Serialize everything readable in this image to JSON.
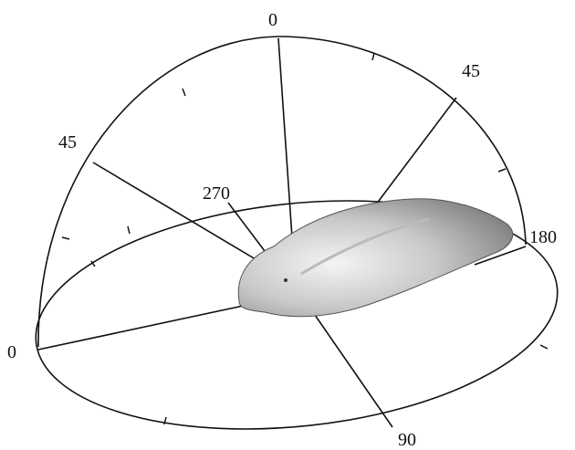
{
  "labels": {
    "top": "0",
    "upper_right": "45",
    "upper_left": "45",
    "back": "270",
    "right": "180",
    "left": "0",
    "front": "90"
  }
}
